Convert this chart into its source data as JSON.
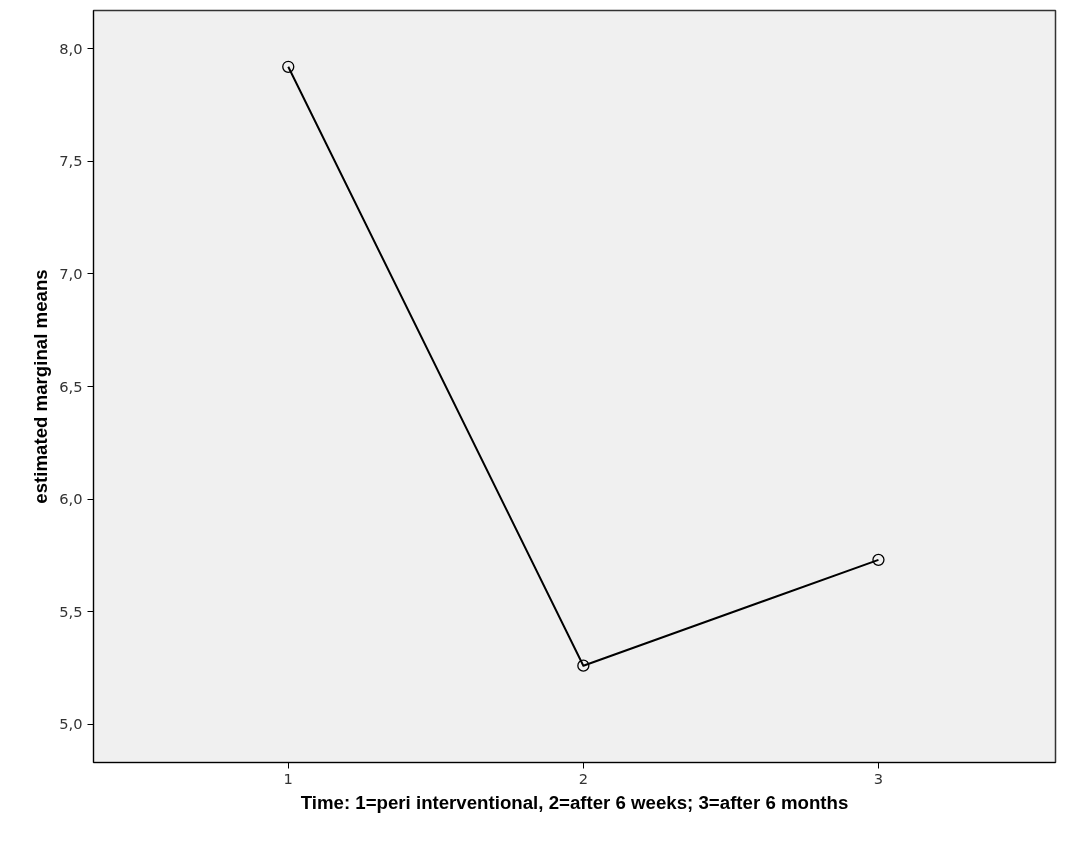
{
  "chart_data": {
    "type": "line",
    "xlabel": "Time: 1=peri interventional, 2=after 6 weeks; 3=after 6 months",
    "ylabel": "estimated marginal means",
    "x": [
      1,
      2,
      3
    ],
    "series": [
      {
        "color": "#000000",
        "values": [
          7.92,
          5.26,
          5.73
        ]
      }
    ],
    "xlim": [
      0.34,
      3.6
    ],
    "xticks": [
      1,
      2,
      3
    ],
    "ylim": [
      4.83,
      8.17
    ],
    "yticks": [
      {
        "value": 5.0,
        "label": "5,0"
      },
      {
        "value": 5.5,
        "label": "5,5"
      },
      {
        "value": 6.0,
        "label": "6,0"
      },
      {
        "value": 6.5,
        "label": "6,5"
      },
      {
        "value": 7.0,
        "label": "7,0"
      },
      {
        "value": 7.5,
        "label": "7,5"
      },
      {
        "value": 8.0,
        "label": "8,0"
      }
    ],
    "marker": "circle",
    "line_style": "solid"
  }
}
